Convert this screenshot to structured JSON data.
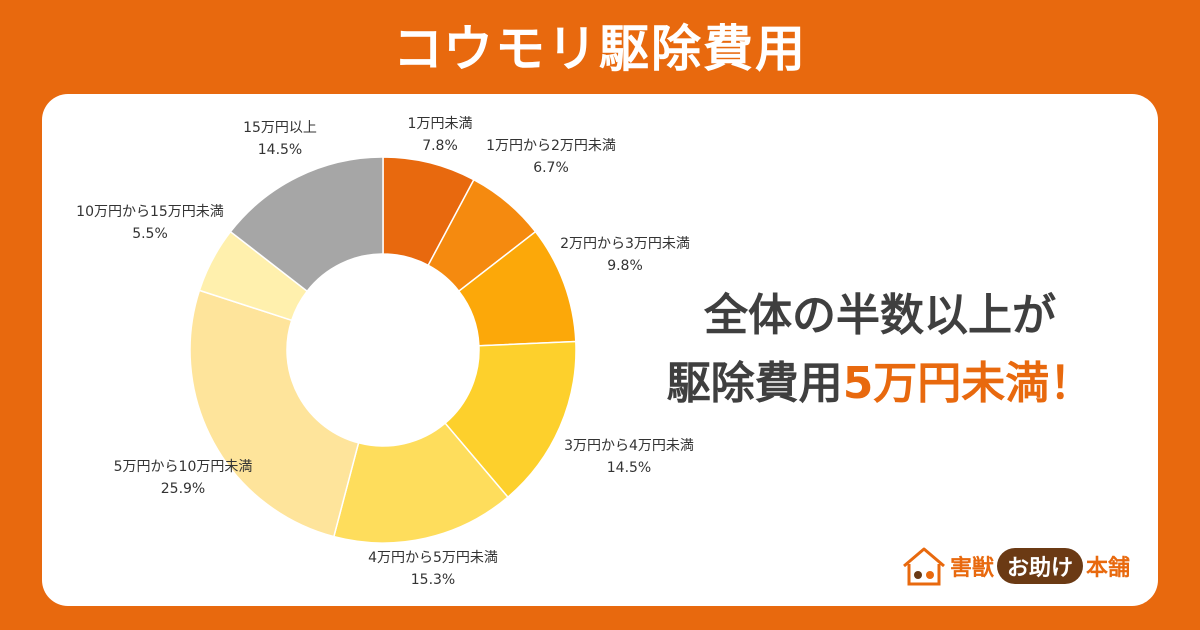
{
  "page": {
    "title": "コウモリ駆除費用"
  },
  "headline": {
    "line1": "全体の半数以上が",
    "line2_prefix": "駆除費用",
    "line2_accent": "5万円未満！"
  },
  "brand": {
    "part1": "害獣",
    "pill": "お助け",
    "part2": "本舗"
  },
  "colors": {
    "background": "#e8690e",
    "accent": "#e8690e",
    "headline_text": "#3f3f3f"
  },
  "chart_data": {
    "type": "pie",
    "donut": true,
    "start": "12 o'clock, clockwise",
    "slices": [
      {
        "label": "1万円未満",
        "value": 7.8,
        "value_label": "7.8%",
        "color": "#e8690e"
      },
      {
        "label": "1万円から2万円未満",
        "value": 6.7,
        "value_label": "6.7%",
        "color": "#f58a0f"
      },
      {
        "label": "2万円から3万円未満",
        "value": 9.8,
        "value_label": "9.8%",
        "color": "#fca809"
      },
      {
        "label": "3万円から4万円未満",
        "value": 14.5,
        "value_label": "14.5%",
        "color": "#fdd02c"
      },
      {
        "label": "4万円から5万円未満",
        "value": 15.3,
        "value_label": "15.3%",
        "color": "#fedd5c"
      },
      {
        "label": "5万円から10万円未満",
        "value": 25.9,
        "value_label": "25.9%",
        "color": "#fee49b"
      },
      {
        "label": "10万円から15万円未満",
        "value": 5.5,
        "value_label": "5.5%",
        "color": "#fff0ad"
      },
      {
        "label": "15万円以上",
        "value": 14.5,
        "value_label": "14.5%",
        "color": "#a6a6a6"
      }
    ]
  }
}
